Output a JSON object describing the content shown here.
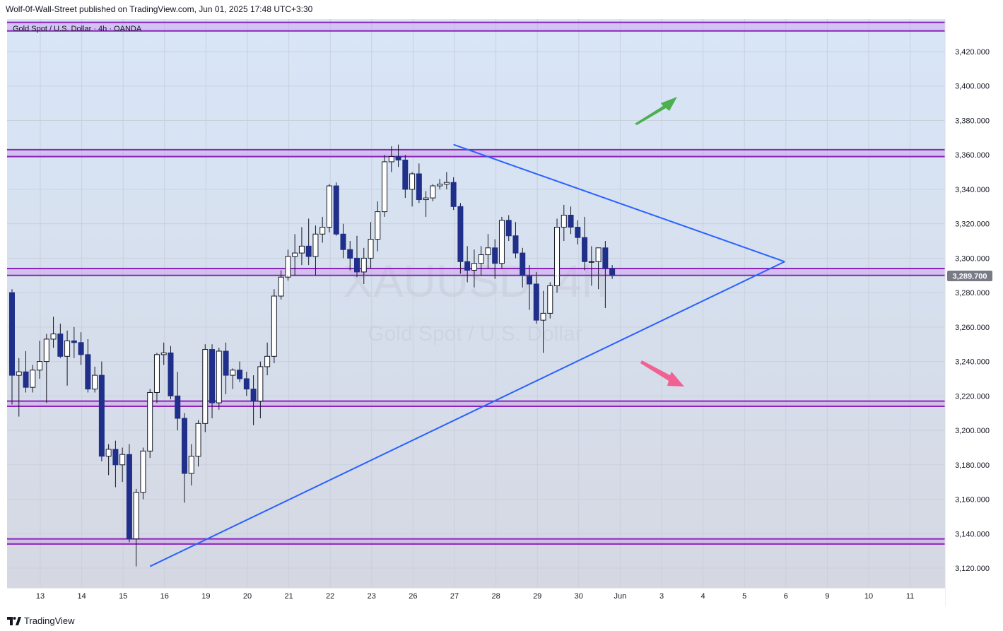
{
  "header": {
    "publish_text": "Wolf-0f-Wall-Street published on TradingView.com, Jun 01, 2025 17:48 UTC+3:30"
  },
  "footer": {
    "brand": "TradingView"
  },
  "colors": {
    "bull_body": "#ffffff",
    "bear_body": "#1f2f8a",
    "wick": "#131722",
    "zone_line": "#8a25b8",
    "zone_fill": "#cc99ee",
    "trend_line": "#2962ff",
    "arrow_up": "#4caf50",
    "arrow_down": "#f06292",
    "price_tag_bg": "#787b86"
  },
  "chart_data": {
    "type": "candlestick",
    "title": "Gold Spot / U.S. Dollar · 4h · OANDA",
    "symbol_watermark": "XAUUSD, 4h",
    "symbol_watermark_sub": "Gold Spot / U.S. Dollar",
    "ylim": [
      3105,
      3440
    ],
    "y_ticks": [
      3120,
      3140,
      3160,
      3180,
      3200,
      3220,
      3240,
      3260,
      3280,
      3300,
      3320,
      3340,
      3360,
      3380,
      3400,
      3420
    ],
    "y_tick_labels": [
      "3,120.000",
      "3,140.000",
      "3,160.000",
      "3,180.000",
      "3,200.000",
      "3,220.000",
      "3,240.000",
      "3,260.000",
      "3,280.000",
      "3,300.000",
      "3,320.000",
      "3,340.000",
      "3,360.000",
      "3,380.000",
      "3,400.000",
      "3,420.000"
    ],
    "x_ticks": [
      "13",
      "14",
      "15",
      "16",
      "19",
      "20",
      "21",
      "22",
      "23",
      "26",
      "27",
      "28",
      "29",
      "30",
      "Jun",
      "3",
      "4",
      "5",
      "6",
      "9",
      "10",
      "11"
    ],
    "last_price": 3289.7,
    "last_price_label": "3,289.700",
    "grid": true,
    "candles": [
      {
        "o": 3280,
        "h": 3282,
        "l": 3215,
        "c": 3232
      },
      {
        "o": 3232,
        "h": 3242,
        "l": 3208,
        "c": 3234
      },
      {
        "o": 3234,
        "h": 3246,
        "l": 3222,
        "c": 3225
      },
      {
        "o": 3225,
        "h": 3238,
        "l": 3222,
        "c": 3235
      },
      {
        "o": 3235,
        "h": 3252,
        "l": 3230,
        "c": 3240
      },
      {
        "o": 3240,
        "h": 3256,
        "l": 3216,
        "c": 3253
      },
      {
        "o": 3253,
        "h": 3266,
        "l": 3248,
        "c": 3256
      },
      {
        "o": 3256,
        "h": 3262,
        "l": 3242,
        "c": 3243
      },
      {
        "o": 3243,
        "h": 3258,
        "l": 3226,
        "c": 3252
      },
      {
        "o": 3252,
        "h": 3260,
        "l": 3242,
        "c": 3251
      },
      {
        "o": 3251,
        "h": 3257,
        "l": 3238,
        "c": 3244
      },
      {
        "o": 3244,
        "h": 3253,
        "l": 3222,
        "c": 3224
      },
      {
        "o": 3224,
        "h": 3237,
        "l": 3222,
        "c": 3232
      },
      {
        "o": 3232,
        "h": 3240,
        "l": 3182,
        "c": 3185
      },
      {
        "o": 3185,
        "h": 3192,
        "l": 3174,
        "c": 3189
      },
      {
        "o": 3189,
        "h": 3194,
        "l": 3167,
        "c": 3180
      },
      {
        "o": 3180,
        "h": 3190,
        "l": 3170,
        "c": 3186
      },
      {
        "o": 3186,
        "h": 3192,
        "l": 3135,
        "c": 3137
      },
      {
        "o": 3137,
        "h": 3166,
        "l": 3121,
        "c": 3164
      },
      {
        "o": 3164,
        "h": 3190,
        "l": 3160,
        "c": 3188
      },
      {
        "o": 3188,
        "h": 3224,
        "l": 3184,
        "c": 3222
      },
      {
        "o": 3222,
        "h": 3245,
        "l": 3216,
        "c": 3244
      },
      {
        "o": 3244,
        "h": 3251,
        "l": 3238,
        "c": 3245
      },
      {
        "o": 3245,
        "h": 3249,
        "l": 3218,
        "c": 3220
      },
      {
        "o": 3220,
        "h": 3234,
        "l": 3200,
        "c": 3207
      },
      {
        "o": 3207,
        "h": 3210,
        "l": 3158,
        "c": 3175
      },
      {
        "o": 3175,
        "h": 3192,
        "l": 3168,
        "c": 3185
      },
      {
        "o": 3185,
        "h": 3206,
        "l": 3179,
        "c": 3204
      },
      {
        "o": 3204,
        "h": 3250,
        "l": 3199,
        "c": 3247
      },
      {
        "o": 3247,
        "h": 3250,
        "l": 3207,
        "c": 3216
      },
      {
        "o": 3216,
        "h": 3248,
        "l": 3212,
        "c": 3246
      },
      {
        "o": 3246,
        "h": 3251,
        "l": 3221,
        "c": 3232
      },
      {
        "o": 3232,
        "h": 3236,
        "l": 3224,
        "c": 3235
      },
      {
        "o": 3235,
        "h": 3240,
        "l": 3228,
        "c": 3230
      },
      {
        "o": 3230,
        "h": 3234,
        "l": 3220,
        "c": 3224
      },
      {
        "o": 3224,
        "h": 3232,
        "l": 3203,
        "c": 3217
      },
      {
        "o": 3217,
        "h": 3240,
        "l": 3207,
        "c": 3237
      },
      {
        "o": 3237,
        "h": 3251,
        "l": 3232,
        "c": 3243
      },
      {
        "o": 3243,
        "h": 3282,
        "l": 3239,
        "c": 3278
      },
      {
        "o": 3278,
        "h": 3293,
        "l": 3276,
        "c": 3289
      },
      {
        "o": 3289,
        "h": 3305,
        "l": 3287,
        "c": 3301
      },
      {
        "o": 3301,
        "h": 3314,
        "l": 3290,
        "c": 3303
      },
      {
        "o": 3303,
        "h": 3318,
        "l": 3296,
        "c": 3307
      },
      {
        "o": 3307,
        "h": 3323,
        "l": 3296,
        "c": 3301
      },
      {
        "o": 3301,
        "h": 3319,
        "l": 3290,
        "c": 3314
      },
      {
        "o": 3314,
        "h": 3324,
        "l": 3309,
        "c": 3318
      },
      {
        "o": 3318,
        "h": 3343,
        "l": 3315,
        "c": 3342
      },
      {
        "o": 3342,
        "h": 3344,
        "l": 3313,
        "c": 3314
      },
      {
        "o": 3314,
        "h": 3320,
        "l": 3300,
        "c": 3305
      },
      {
        "o": 3305,
        "h": 3310,
        "l": 3293,
        "c": 3300
      },
      {
        "o": 3300,
        "h": 3313,
        "l": 3289,
        "c": 3292
      },
      {
        "o": 3292,
        "h": 3306,
        "l": 3285,
        "c": 3300
      },
      {
        "o": 3300,
        "h": 3321,
        "l": 3294,
        "c": 3311
      },
      {
        "o": 3311,
        "h": 3333,
        "l": 3304,
        "c": 3327
      },
      {
        "o": 3327,
        "h": 3360,
        "l": 3324,
        "c": 3356
      },
      {
        "o": 3356,
        "h": 3365,
        "l": 3350,
        "c": 3359
      },
      {
        "o": 3359,
        "h": 3366,
        "l": 3353,
        "c": 3357
      },
      {
        "o": 3357,
        "h": 3360,
        "l": 3335,
        "c": 3340
      },
      {
        "o": 3340,
        "h": 3350,
        "l": 3330,
        "c": 3349
      },
      {
        "o": 3349,
        "h": 3355,
        "l": 3332,
        "c": 3334
      },
      {
        "o": 3334,
        "h": 3339,
        "l": 3324,
        "c": 3335
      },
      {
        "o": 3335,
        "h": 3343,
        "l": 3333,
        "c": 3342
      },
      {
        "o": 3342,
        "h": 3346,
        "l": 3340,
        "c": 3343
      },
      {
        "o": 3343,
        "h": 3350,
        "l": 3340,
        "c": 3344
      },
      {
        "o": 3344,
        "h": 3347,
        "l": 3328,
        "c": 3330
      },
      {
        "o": 3330,
        "h": 3332,
        "l": 3291,
        "c": 3298
      },
      {
        "o": 3298,
        "h": 3307,
        "l": 3286,
        "c": 3293
      },
      {
        "o": 3293,
        "h": 3305,
        "l": 3283,
        "c": 3297
      },
      {
        "o": 3297,
        "h": 3307,
        "l": 3290,
        "c": 3302
      },
      {
        "o": 3302,
        "h": 3314,
        "l": 3294,
        "c": 3306
      },
      {
        "o": 3306,
        "h": 3311,
        "l": 3288,
        "c": 3297
      },
      {
        "o": 3297,
        "h": 3324,
        "l": 3294,
        "c": 3322
      },
      {
        "o": 3322,
        "h": 3325,
        "l": 3310,
        "c": 3313
      },
      {
        "o": 3313,
        "h": 3321,
        "l": 3300,
        "c": 3303
      },
      {
        "o": 3303,
        "h": 3306,
        "l": 3283,
        "c": 3290
      },
      {
        "o": 3290,
        "h": 3296,
        "l": 3270,
        "c": 3285
      },
      {
        "o": 3285,
        "h": 3292,
        "l": 3262,
        "c": 3264
      },
      {
        "o": 3264,
        "h": 3281,
        "l": 3245,
        "c": 3268
      },
      {
        "o": 3268,
        "h": 3286,
        "l": 3265,
        "c": 3284
      },
      {
        "o": 3284,
        "h": 3323,
        "l": 3280,
        "c": 3318
      },
      {
        "o": 3318,
        "h": 3331,
        "l": 3310,
        "c": 3325
      },
      {
        "o": 3325,
        "h": 3330,
        "l": 3314,
        "c": 3318
      },
      {
        "o": 3318,
        "h": 3322,
        "l": 3308,
        "c": 3312
      },
      {
        "o": 3312,
        "h": 3324,
        "l": 3293,
        "c": 3298
      },
      {
        "o": 3298,
        "h": 3307,
        "l": 3284,
        "c": 3298
      },
      {
        "o": 3298,
        "h": 3306,
        "l": 3282,
        "c": 3306
      },
      {
        "o": 3306,
        "h": 3310,
        "l": 3271,
        "c": 3294
      },
      {
        "o": 3294,
        "h": 3296,
        "l": 3288,
        "c": 3290
      }
    ],
    "zones": [
      {
        "top": 3437,
        "bottom": 3432
      },
      {
        "top": 3363,
        "bottom": 3359
      },
      {
        "top": 3294,
        "bottom": 3290
      },
      {
        "top": 3217,
        "bottom": 3214
      },
      {
        "top": 3137,
        "bottom": 3134
      }
    ],
    "trendlines": [
      {
        "from": {
          "bar": 64,
          "price": 3366
        },
        "to": {
          "bar": 112,
          "price": 3298
        }
      },
      {
        "from": {
          "bar": 20,
          "price": 3121
        },
        "to": {
          "bar": 112,
          "price": 3298
        }
      }
    ]
  }
}
